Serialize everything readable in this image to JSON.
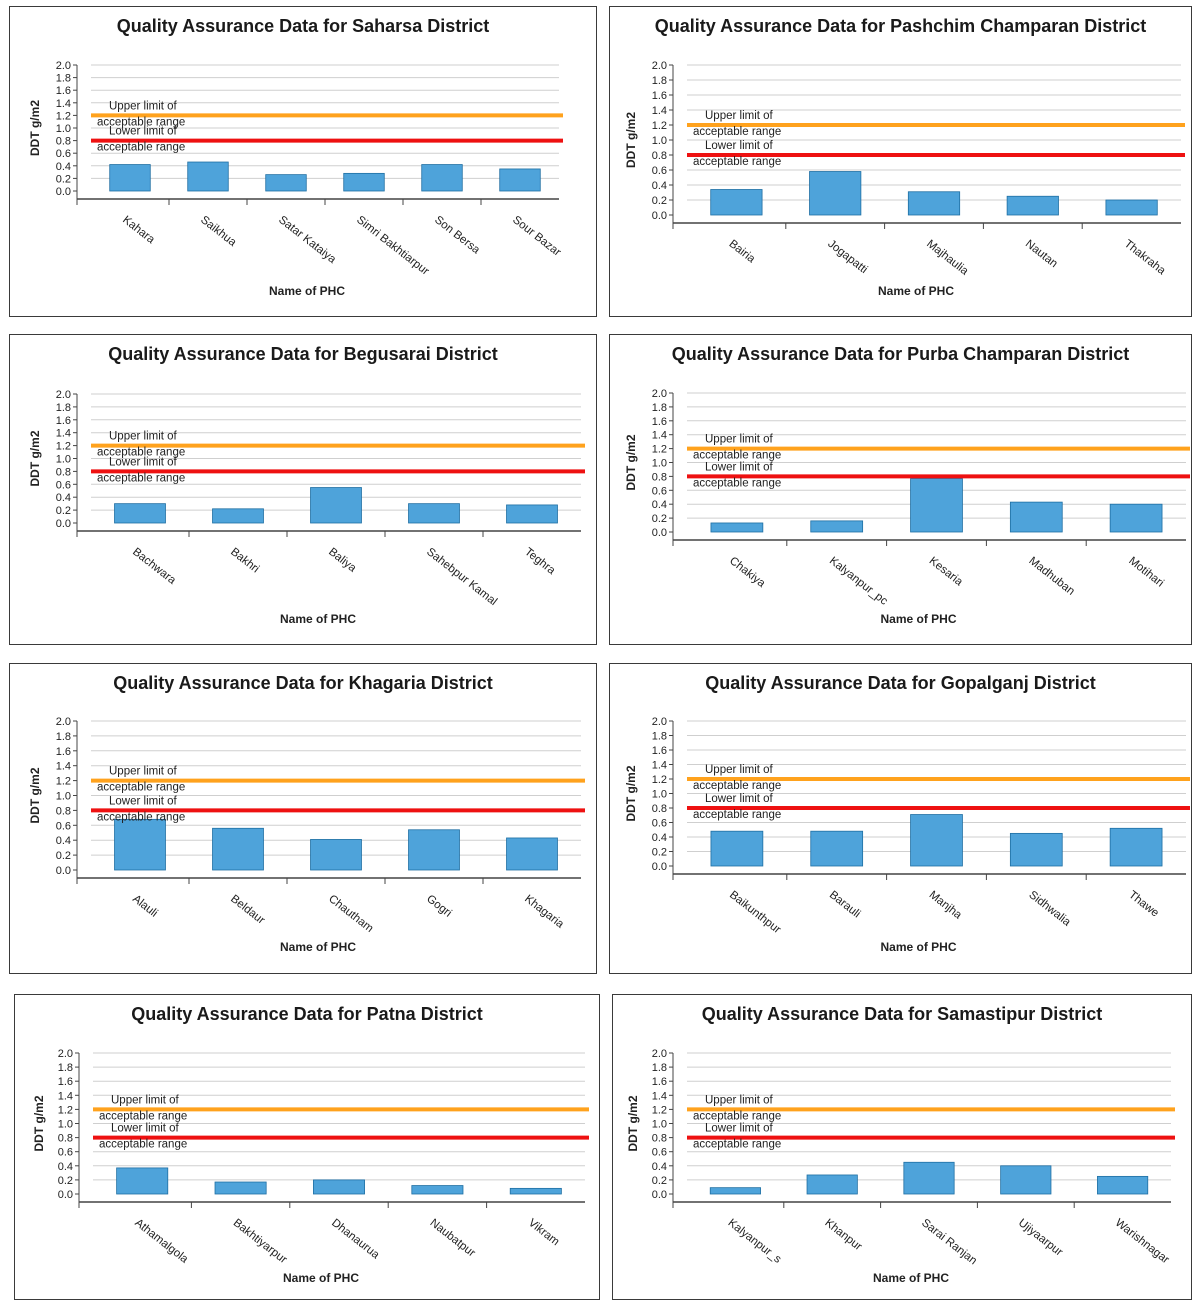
{
  "colors": {
    "bar": "#4ea3da",
    "bar_edge": "#1f6fa3",
    "upper": "#ffa21d",
    "lower": "#ee1111",
    "grid": "#cfcfcf"
  },
  "chart_data": [
    {
      "type": "bar",
      "title": "Quality Assurance Data for Saharsa District",
      "categories": [
        "Kahara",
        "Saikhua",
        "Satar Kataiya",
        "Simri Bakhtiarpur",
        "Son Bersa",
        "Sour Bazar"
      ],
      "values": [
        0.42,
        0.46,
        0.26,
        0.28,
        0.42,
        0.35
      ],
      "xlabel": "Name of PHC",
      "ylabel": "DDT g/m2",
      "ylim": [
        0,
        2.0
      ],
      "yticks": [
        "0.0",
        "0.2",
        "0.4",
        "0.6",
        "0.8",
        "1.0",
        "1.2",
        "1.4",
        "1.6",
        "1.8",
        "2.0"
      ],
      "upper_limit": {
        "value": 1.2,
        "label": [
          "Upper limit of",
          "acceptable range"
        ]
      },
      "lower_limit": {
        "value": 0.8,
        "label": [
          "Lower limit of",
          "acceptable range"
        ]
      },
      "grid": true
    },
    {
      "type": "bar",
      "title": "Quality Assurance Data for Pashchim Champaran District",
      "categories": [
        "Bairia",
        "Jogapatti",
        "Majhaulia",
        "Nautan",
        "Thakraha"
      ],
      "values": [
        0.34,
        0.58,
        0.31,
        0.25,
        0.2
      ],
      "xlabel": "Name of PHC",
      "ylabel": "DDT g/m2",
      "ylim": [
        0,
        2.0
      ],
      "yticks": [
        "0.0",
        "0.2",
        "0.4",
        "0.6",
        "0.8",
        "1.0",
        "1.2",
        "1.4",
        "1.6",
        "1.8",
        "2.0"
      ],
      "upper_limit": {
        "value": 1.2,
        "label": [
          "Upper limit of",
          "acceptable range"
        ]
      },
      "lower_limit": {
        "value": 0.8,
        "label": [
          "Lower limit of",
          "acceptable range"
        ]
      },
      "grid": true
    },
    {
      "type": "bar",
      "title": "Quality Assurance Data for Begusarai District",
      "categories": [
        "Bachwara",
        "Bakhri",
        "Baliya",
        "Sahebpur Kamal",
        "Teghra"
      ],
      "values": [
        0.3,
        0.22,
        0.55,
        0.3,
        0.28
      ],
      "xlabel": "Name of PHC",
      "ylabel": "DDT g/m2",
      "ylim": [
        0,
        2.0
      ],
      "yticks": [
        "0.0",
        "0.2",
        "0.4",
        "0.6",
        "0.8",
        "1.0",
        "1.2",
        "1.4",
        "1.6",
        "1.8",
        "2.0"
      ],
      "upper_limit": {
        "value": 1.2,
        "label": [
          "Upper limit of",
          "acceptable range"
        ]
      },
      "lower_limit": {
        "value": 0.8,
        "label": [
          "Lower limit of",
          "acceptable range"
        ]
      },
      "grid": true
    },
    {
      "type": "bar",
      "title": "Quality Assurance Data for Purba Champaran District",
      "categories": [
        "Chakiya",
        "Kalyanpur_pc",
        "Kesaria",
        "Madhuban",
        "Motihari"
      ],
      "values": [
        0.13,
        0.16,
        0.77,
        0.43,
        0.4
      ],
      "xlabel": "Name of PHC",
      "ylabel": "DDT g/m2",
      "ylim": [
        0,
        2.0
      ],
      "yticks": [
        "0.0",
        "0.2",
        "0.4",
        "0.6",
        "0.8",
        "1.0",
        "1.2",
        "1.4",
        "1.6",
        "1.8",
        "2.0"
      ],
      "upper_limit": {
        "value": 1.2,
        "label": [
          "Upper limit of",
          "acceptable range"
        ]
      },
      "lower_limit": {
        "value": 0.8,
        "label": [
          "Lower limit of",
          "acceptable range"
        ]
      },
      "grid": true
    },
    {
      "type": "bar",
      "title": "Quality Assurance Data for Khagaria District",
      "categories": [
        "Alauli",
        "Beldaur",
        "Chautham",
        "Gogri",
        "Khagaria"
      ],
      "values": [
        0.68,
        0.56,
        0.41,
        0.54,
        0.43
      ],
      "xlabel": "Name of PHC",
      "ylabel": "DDT g/m2",
      "ylim": [
        0,
        2.0
      ],
      "yticks": [
        "0.0",
        "0.2",
        "0.4",
        "0.6",
        "0.8",
        "1.0",
        "1.2",
        "1.4",
        "1.6",
        "1.8",
        "2.0"
      ],
      "upper_limit": {
        "value": 1.2,
        "label": [
          "Upper limit of",
          "acceptable range"
        ]
      },
      "lower_limit": {
        "value": 0.8,
        "label": [
          "Lower limit of",
          "acceptable range"
        ]
      },
      "grid": true
    },
    {
      "type": "bar",
      "title": "Quality Assurance Data for Gopalganj District",
      "categories": [
        "Baikunthpur",
        "Barauli",
        "Manjha",
        "Sidhwalia",
        "Thawe"
      ],
      "values": [
        0.48,
        0.48,
        0.71,
        0.45,
        0.52
      ],
      "xlabel": "Name of PHC",
      "ylabel": "DDT g/m2",
      "ylim": [
        0,
        2.0
      ],
      "yticks": [
        "0.0",
        "0.2",
        "0.4",
        "0.6",
        "0.8",
        "1.0",
        "1.2",
        "1.4",
        "1.6",
        "1.8",
        "2.0"
      ],
      "upper_limit": {
        "value": 1.2,
        "label": [
          "Upper limit of",
          "acceptable range"
        ]
      },
      "lower_limit": {
        "value": 0.8,
        "label": [
          "Lower limit of",
          "acceptable range"
        ]
      },
      "grid": true
    },
    {
      "type": "bar",
      "title": "Quality Assurance Data for Patna District",
      "categories": [
        "Athamalgola",
        "Bakhtiyarpur",
        "Dhanaurua",
        "Naubatpur",
        "Vikram"
      ],
      "values": [
        0.37,
        0.17,
        0.2,
        0.12,
        0.08
      ],
      "xlabel": "Name of PHC",
      "ylabel": "DDT g/m2",
      "ylim": [
        0,
        2.0
      ],
      "yticks": [
        "0.0",
        "0.2",
        "0.4",
        "0.6",
        "0.8",
        "1.0",
        "1.2",
        "1.4",
        "1.6",
        "1.8",
        "2.0"
      ],
      "upper_limit": {
        "value": 1.2,
        "label": [
          "Upper limit of",
          "acceptable range"
        ]
      },
      "lower_limit": {
        "value": 0.8,
        "label": [
          "Lower limit of",
          "acceptable range"
        ]
      },
      "grid": true
    },
    {
      "type": "bar",
      "title": "Quality Assurance Data for Samastipur District",
      "categories": [
        "Kalyanpur_s",
        "Khanpur",
        "Sarai Ranjan",
        "Ujiyaarpur",
        "Warishnagar"
      ],
      "values": [
        0.09,
        0.27,
        0.45,
        0.4,
        0.25
      ],
      "xlabel": "Name of PHC",
      "ylabel": "DDT g/m2",
      "ylim": [
        0,
        2.0
      ],
      "yticks": [
        "0.0",
        "0.2",
        "0.4",
        "0.6",
        "0.8",
        "1.0",
        "1.2",
        "1.4",
        "1.6",
        "1.8",
        "2.0"
      ],
      "upper_limit": {
        "value": 1.2,
        "label": [
          "Upper limit of",
          "acceptable range"
        ]
      },
      "lower_limit": {
        "value": 0.8,
        "label": [
          "Lower limit of",
          "acceptable range"
        ]
      },
      "grid": true
    }
  ]
}
